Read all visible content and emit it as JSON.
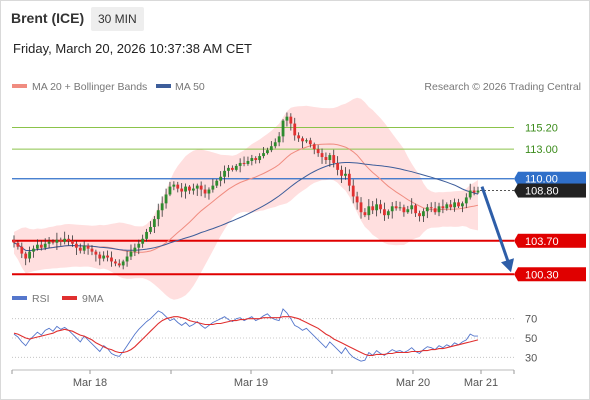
{
  "header": {
    "instrument": "Brent (ICE)",
    "timeframe": "30 MIN",
    "datetime": "Friday, March 20, 2026 10:37:38 AM CET"
  },
  "legend": {
    "ma20": "MA 20 + Bollinger Bands",
    "ma50": "MA 50",
    "rsi": "RSI",
    "ma9": "9MA",
    "copyright": "Research © 2026 Trading Central"
  },
  "colors": {
    "ma20": "#f08c80",
    "bands": "#ffd4d4",
    "ma50": "#3d5d9a",
    "resistance": "#8bc34a",
    "current": "#2f6fc9",
    "pivot": "#e00000",
    "rsi": "#5577cc",
    "ma9": "#e03030",
    "candle_up": "#2e8b2e",
    "candle_down": "#e03030",
    "arrow": "#2e5ea8"
  },
  "chart_data": [
    {
      "type": "candlestick",
      "title": "Brent (ICE)",
      "x_labels": [
        "Mar 18",
        "Mar 19",
        "Mar 20",
        "Mar 21"
      ],
      "ylim": [
        98.5,
        118.5
      ],
      "levels": [
        {
          "value": 115.2,
          "label": "115.20",
          "kind": "resistance"
        },
        {
          "value": 113.0,
          "label": "113.00",
          "kind": "resistance"
        },
        {
          "value": 110.0,
          "label": "110.00",
          "kind": "current-line"
        },
        {
          "value": 108.8,
          "label": "108.80",
          "kind": "last-price"
        },
        {
          "value": 103.7,
          "label": "103.70",
          "kind": "pivot"
        },
        {
          "value": 100.3,
          "label": "100.30",
          "kind": "support"
        }
      ],
      "forecast_arrow": {
        "from": 109.2,
        "to": 100.5
      },
      "close_path": [
        103.5,
        103.1,
        102.4,
        101.9,
        102.6,
        102.9,
        103.3,
        103.0,
        103.4,
        103.6,
        103.5,
        103.8,
        103.6,
        103.9,
        103.7,
        103.4,
        103.0,
        102.7,
        103.2,
        102.9,
        102.6,
        102.3,
        101.9,
        102.2,
        102.0,
        101.6,
        101.4,
        101.2,
        101.6,
        102.1,
        102.6,
        103.0,
        103.4,
        103.9,
        104.6,
        105.1,
        105.9,
        106.8,
        107.5,
        108.4,
        109.2,
        109.4,
        109.0,
        108.7,
        109.2,
        108.8,
        109.0,
        109.3,
        108.9,
        108.5,
        108.9,
        109.3,
        109.8,
        110.2,
        110.8,
        111.1,
        110.9,
        111.3,
        111.6,
        111.5,
        111.8,
        112.1,
        111.9,
        112.3,
        112.6,
        112.9,
        113.3,
        113.7,
        114.3,
        115.9,
        116.3,
        115.6,
        114.4,
        114.1,
        113.8,
        113.9,
        113.5,
        113.0,
        112.6,
        112.2,
        111.9,
        112.4,
        111.6,
        110.9,
        110.3,
        110.5,
        109.3,
        108.2,
        107.6,
        106.6,
        106.3,
        107.2,
        106.8,
        107.4,
        106.9,
        106.3,
        106.7,
        107.2,
        107.0,
        107.1,
        106.6,
        106.9,
        107.3,
        106.5,
        106.2,
        106.7,
        107.1,
        107.0,
        106.6,
        107.2,
        107.0,
        107.4,
        107.1,
        107.6,
        107.2,
        107.5,
        108.1,
        108.8,
        108.6,
        108.8
      ]
    },
    {
      "type": "line",
      "title": "RSI",
      "ylim": [
        20,
        80
      ],
      "y_ticks": [
        "70",
        "50",
        "30"
      ],
      "series": [
        {
          "name": "RSI",
          "values": [
            54,
            51,
            46,
            42,
            48,
            52,
            56,
            53,
            58,
            60,
            57,
            62,
            59,
            61,
            58,
            54,
            50,
            46,
            52,
            48,
            44,
            40,
            36,
            42,
            39,
            34,
            32,
            31,
            36,
            42,
            48,
            54,
            59,
            63,
            67,
            70,
            74,
            78,
            76,
            72,
            68,
            70,
            66,
            63,
            66,
            62,
            64,
            67,
            63,
            60,
            63,
            66,
            68,
            70,
            72,
            69,
            67,
            70,
            71,
            68,
            70,
            72,
            68,
            70,
            73,
            75,
            71,
            69,
            68,
            80,
            76,
            70,
            63,
            61,
            58,
            60,
            56,
            52,
            48,
            44,
            40,
            46,
            42,
            38,
            34,
            40,
            34,
            30,
            28,
            26,
            27,
            35,
            32,
            37,
            34,
            32,
            35,
            38,
            36,
            37,
            35,
            37,
            40,
            36,
            34,
            38,
            41,
            40,
            38,
            42,
            40,
            43,
            41,
            45,
            43,
            46,
            48,
            54,
            52,
            52
          ]
        },
        {
          "name": "9MA",
          "values": [
            55,
            54,
            52,
            50,
            49,
            50,
            51,
            52,
            53,
            54,
            55,
            57,
            58,
            59,
            58,
            57,
            55,
            53,
            52,
            50,
            48,
            45,
            43,
            41,
            39,
            38,
            36,
            35,
            35,
            36,
            38,
            41,
            45,
            49,
            53,
            57,
            61,
            65,
            68,
            70,
            71,
            72,
            72,
            71,
            70,
            68,
            67,
            66,
            65,
            64,
            64,
            64,
            65,
            65,
            66,
            67,
            68,
            68,
            69,
            69,
            70,
            70,
            70,
            70,
            71,
            71,
            71,
            71,
            71,
            72,
            72,
            72,
            71,
            70,
            68,
            66,
            64,
            62,
            60,
            57,
            54,
            52,
            49,
            47,
            45,
            43,
            41,
            39,
            37,
            35,
            33,
            32,
            32,
            33,
            33,
            33,
            34,
            34,
            35,
            35,
            35,
            35,
            36,
            36,
            36,
            37,
            37,
            38,
            38,
            39,
            39,
            40,
            41,
            42,
            43,
            44,
            45,
            46,
            47,
            48
          ]
        }
      ]
    }
  ]
}
